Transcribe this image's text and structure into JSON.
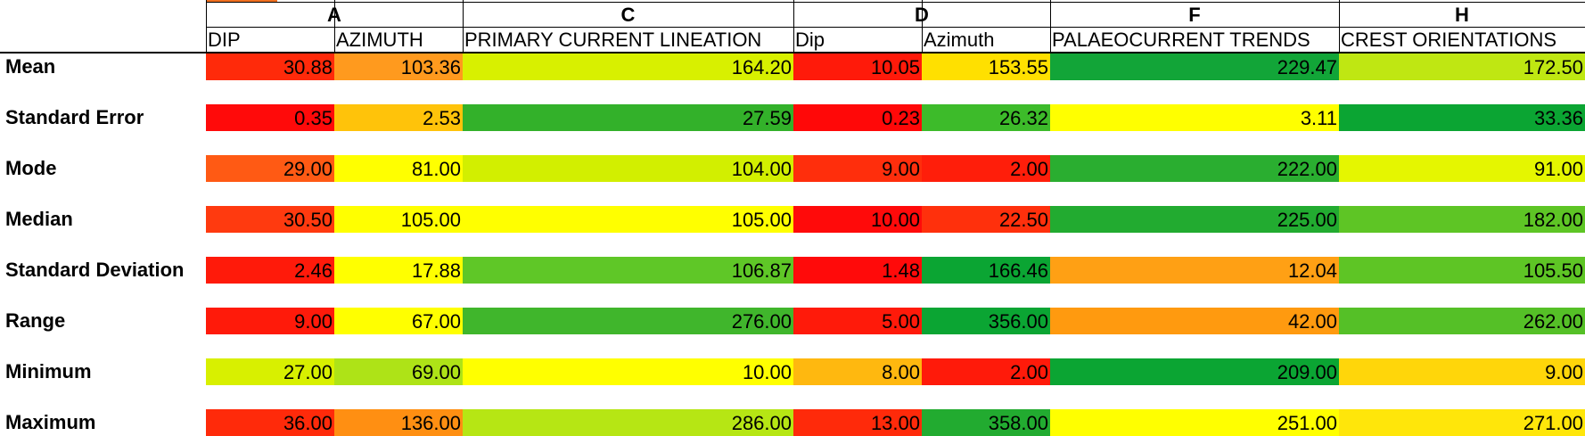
{
  "groups": [
    {
      "label": "A",
      "span": [
        0,
        1
      ]
    },
    {
      "label": "C",
      "span": [
        2,
        2
      ]
    },
    {
      "label": "D",
      "span": [
        3,
        4
      ]
    },
    {
      "label": "F",
      "span": [
        5,
        5
      ]
    },
    {
      "label": "H",
      "span": [
        6,
        6
      ]
    }
  ],
  "columns": [
    "DIP",
    "AZIMUTH",
    "PRIMARY CURRENT LINEATION",
    "Dip",
    "Azimuth",
    "PALAEOCURRENT TRENDS",
    "CREST ORIENTATIONS"
  ],
  "rows": [
    {
      "label": "Mean",
      "values": [
        "30.88",
        "103.36",
        "164.20",
        "10.05",
        "153.55",
        "229.47",
        "172.50"
      ],
      "colors": [
        "#ff2a0a",
        "#ff9a1e",
        "#d8f000",
        "#ff1a0a",
        "#ffe000",
        "#12a538",
        "#bfe712"
      ]
    },
    {
      "label": "Standard Error",
      "values": [
        "0.35",
        "2.53",
        "27.59",
        "0.23",
        "26.32",
        "3.11",
        "33.36"
      ],
      "colors": [
        "#ff0a0a",
        "#ffc30a",
        "#33b12a",
        "#ff0808",
        "#3dbb2a",
        "#ffff00",
        "#0ba533"
      ]
    },
    {
      "label": "Mode",
      "values": [
        "29.00",
        "81.00",
        "104.00",
        "9.00",
        "2.00",
        "222.00",
        "91.00"
      ],
      "colors": [
        "#ff5a14",
        "#ffff00",
        "#d2ef00",
        "#ff2e0c",
        "#ff1e0a",
        "#2aae30",
        "#e5f600"
      ]
    },
    {
      "label": "Median",
      "values": [
        "30.50",
        "105.00",
        "105.00",
        "10.00",
        "22.50",
        "225.00",
        "182.00"
      ],
      "colors": [
        "#ff3a0f",
        "#ffff00",
        "#ffff00",
        "#ff0a0a",
        "#ff300c",
        "#22ab30",
        "#5ec525"
      ]
    },
    {
      "label": "Standard Deviation",
      "values": [
        "2.46",
        "17.88",
        "106.87",
        "1.48",
        "166.46",
        "12.04",
        "105.50"
      ],
      "colors": [
        "#ff1a0a",
        "#ffff00",
        "#5fc727",
        "#ff0a0a",
        "#0ba533",
        "#ffa014",
        "#5ec525"
      ]
    },
    {
      "label": "Range",
      "values": [
        "9.00",
        "67.00",
        "276.00",
        "5.00",
        "356.00",
        "42.00",
        "262.00"
      ],
      "colors": [
        "#ff1a0a",
        "#ffff00",
        "#40b62c",
        "#ff1a0a",
        "#0ba533",
        "#ff9a0f",
        "#55c027"
      ]
    },
    {
      "label": "Minimum",
      "values": [
        "27.00",
        "69.00",
        "10.00",
        "8.00",
        "2.00",
        "209.00",
        "9.00"
      ],
      "colors": [
        "#d8f000",
        "#aee317",
        "#ffff00",
        "#ffb80f",
        "#ff1a0a",
        "#0ba533",
        "#ffd60a"
      ]
    },
    {
      "label": "Maximum",
      "values": [
        "36.00",
        "136.00",
        "286.00",
        "13.00",
        "358.00",
        "251.00",
        "271.00"
      ],
      "colors": [
        "#ff2a0a",
        "#ff8f12",
        "#b6e614",
        "#ff2a0a",
        "#22ab30",
        "#ffff00",
        "#ffe60a"
      ]
    }
  ]
}
